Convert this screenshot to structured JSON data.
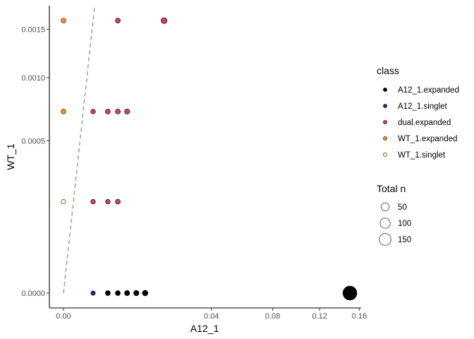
{
  "chart_data": {
    "type": "scatter",
    "xlabel": "A12_1",
    "ylabel": "WT_1",
    "x_ticks": [
      {
        "value": 0.0,
        "label": "0.00"
      },
      {
        "value": 0.04,
        "label": "0.04"
      },
      {
        "value": 0.08,
        "label": "0.08"
      },
      {
        "value": 0.12,
        "label": "0.12"
      },
      {
        "value": 0.16,
        "label": "0.16"
      }
    ],
    "x_scale": "sqrt",
    "y_ticks": [
      {
        "value": 0.0,
        "label": "0.0000"
      },
      {
        "value": 0.0005,
        "label": "0.0005"
      },
      {
        "value": 0.001,
        "label": "0.0010"
      },
      {
        "value": 0.0015,
        "label": "0.0015"
      }
    ],
    "y_scale": "sqrt",
    "xlim": [
      0,
      0.162
    ],
    "ylim": [
      0,
      0.00178
    ],
    "grid": false,
    "reference_line": {
      "style": "dashed",
      "color": "#999999",
      "slope": 1
    },
    "color_legend": {
      "title": "class",
      "entries": [
        {
          "name": "A12_1.expanded",
          "color": "#000000"
        },
        {
          "name": "A12_1.singlet",
          "color": "#5a167e"
        },
        {
          "name": "dual.expanded",
          "color": "#c83e73"
        },
        {
          "name": "WT_1.expanded",
          "color": "#f7931e"
        },
        {
          "name": "WT_1.singlet",
          "color": "#fcfdbf"
        }
      ]
    },
    "size_legend": {
      "title": "Total n",
      "entries": [
        {
          "label": "50",
          "value": 50
        },
        {
          "label": "100",
          "value": 100
        },
        {
          "label": "150",
          "value": 150
        }
      ]
    },
    "legend_position": "right",
    "series": [
      {
        "name": "A12_1.expanded",
        "color": "#000000",
        "points": [
          {
            "x": 0.0036,
            "y": 0,
            "n": 4
          },
          {
            "x": 0.0054,
            "y": 0,
            "n": 4
          },
          {
            "x": 0.0074,
            "y": 0,
            "n": 5
          },
          {
            "x": 0.0097,
            "y": 0,
            "n": 6
          },
          {
            "x": 0.0122,
            "y": 0,
            "n": 7
          },
          {
            "x": 0.15,
            "y": 0,
            "n": 150
          }
        ]
      },
      {
        "name": "A12_1.singlet",
        "color": "#5a167e",
        "points": [
          {
            "x": 0.0016,
            "y": 0,
            "n": 2
          }
        ]
      },
      {
        "name": "dual.expanded",
        "color": "#c83e73",
        "points": [
          {
            "x": 0.0016,
            "y": 0.00018,
            "n": 3
          },
          {
            "x": 0.0036,
            "y": 0.00018,
            "n": 3
          },
          {
            "x": 0.0054,
            "y": 0.00018,
            "n": 4
          },
          {
            "x": 0.0016,
            "y": 0.00071,
            "n": 3
          },
          {
            "x": 0.0036,
            "y": 0.00071,
            "n": 4
          },
          {
            "x": 0.0054,
            "y": 0.00071,
            "n": 4
          },
          {
            "x": 0.0074,
            "y": 0.00071,
            "n": 5
          },
          {
            "x": 0.0054,
            "y": 0.0016,
            "n": 4
          },
          {
            "x": 0.0185,
            "y": 0.0016,
            "n": 10
          }
        ]
      },
      {
        "name": "WT_1.expanded",
        "color": "#f7931e",
        "points": [
          {
            "x": 0,
            "y": 0.00071,
            "n": 3
          },
          {
            "x": 0,
            "y": 0.0016,
            "n": 3
          }
        ]
      },
      {
        "name": "WT_1.singlet",
        "color": "#fcfdbf",
        "points": [
          {
            "x": 0,
            "y": 0.00018,
            "n": 2
          }
        ]
      }
    ]
  }
}
